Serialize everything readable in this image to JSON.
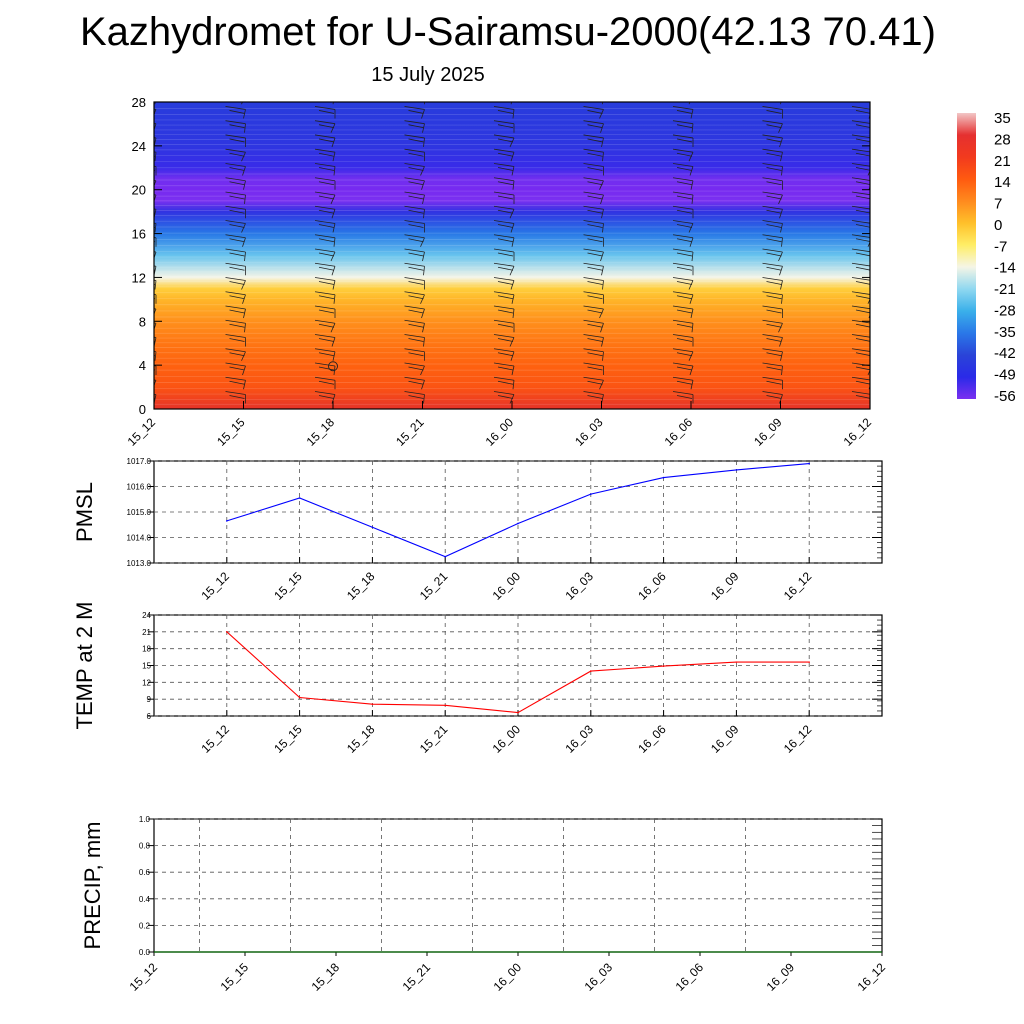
{
  "header": {
    "title": "Kazhydromet for U-Sairamsu-2000(42.13 70.41)",
    "date": "15 July 2025"
  },
  "colors": {
    "pmsl_line": "#0000ff",
    "temp_line": "#ff0000",
    "precip_line": "#006400",
    "grid": "#555555"
  },
  "colorbar": {
    "labels": [
      "35",
      "28",
      "21",
      "14",
      "7",
      "0",
      "-7",
      "-14",
      "-21",
      "-28",
      "-35",
      "-42",
      "-49",
      "-56"
    ],
    "colors": [
      "#f2c6c6",
      "#e53030",
      "#f23a1e",
      "#ff5a10",
      "#ff8a1e",
      "#ffc02a",
      "#ffee66",
      "#f5f5e6",
      "#90d8f0",
      "#3ab0ea",
      "#2a78e8",
      "#2a44d8",
      "#2a2ae8",
      "#7a30f0"
    ]
  },
  "chart_data": [
    {
      "type": "heatmap",
      "title": "",
      "xlabel": "",
      "ylabel": "",
      "categories": [
        "15_12",
        "15_15",
        "15_18",
        "15_21",
        "16_00",
        "16_03",
        "16_06",
        "16_09",
        "16_12"
      ],
      "y_ticks": [
        "0",
        "4",
        "8",
        "12",
        "16",
        "20",
        "24",
        "28"
      ],
      "ylim": [
        0,
        28
      ],
      "zlim": [
        -56,
        35
      ],
      "levels": [
        0,
        1,
        2,
        4,
        6,
        8,
        10,
        11,
        12,
        14,
        16,
        18,
        19,
        20,
        21,
        22,
        24,
        28
      ],
      "temperature_by_level": [
        28,
        24,
        20,
        16,
        12,
        8,
        2,
        -2,
        -14,
        -24,
        -35,
        -45,
        -56,
        -59,
        -55,
        -48,
        -44,
        -42
      ],
      "wind_barbs": "present at each time column"
    },
    {
      "type": "line",
      "title": "",
      "xlabel": "",
      "ylabel": "PMSL",
      "categories": [
        "15_12",
        "15_15",
        "15_18",
        "15_21",
        "16_00",
        "16_03",
        "16_06",
        "16_09",
        "16_12"
      ],
      "y_ticks": [
        "1013.0",
        "1014.0",
        "1015.0",
        "1016.0",
        "1017.0"
      ],
      "ylim": [
        1013.0,
        1017.0
      ],
      "grid": true,
      "values": [
        1014.65,
        1015.55,
        1014.4,
        1013.25,
        1014.55,
        1015.7,
        1016.35,
        1016.65,
        1016.9
      ]
    },
    {
      "type": "line",
      "title": "",
      "xlabel": "",
      "ylabel": "TEMP at 2 M",
      "categories": [
        "15_12",
        "15_15",
        "15_18",
        "15_21",
        "16_00",
        "16_03",
        "16_06",
        "16_09",
        "16_12"
      ],
      "y_ticks": [
        "6",
        "9",
        "12",
        "15",
        "18",
        "21",
        "24"
      ],
      "ylim": [
        6,
        24
      ],
      "grid": true,
      "values": [
        21,
        9.3,
        8.1,
        7.9,
        6.6,
        14.0,
        14.9,
        15.6,
        15.6
      ]
    },
    {
      "type": "line",
      "title": "",
      "xlabel": "",
      "ylabel": "PRECIP, mm",
      "categories": [
        "15_12",
        "15_15",
        "15_18",
        "15_21",
        "16_00",
        "16_03",
        "16_06",
        "16_09",
        "16_12"
      ],
      "y_ticks": [
        "0.0",
        "0.2",
        "0.4",
        "0.6",
        "0.8",
        "1.0"
      ],
      "ylim": [
        0,
        1
      ],
      "grid": true,
      "values": [
        0,
        0,
        0,
        0,
        0,
        0,
        0,
        0,
        0
      ]
    }
  ]
}
